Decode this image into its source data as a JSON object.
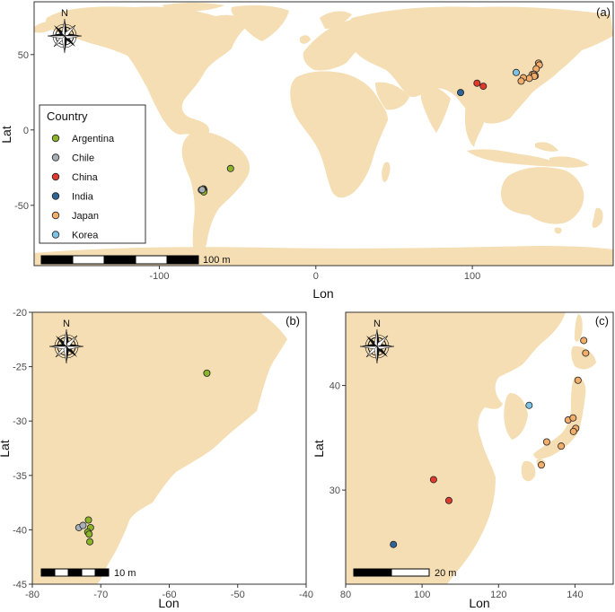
{
  "panels": [
    {
      "id": "a",
      "label": "(a)",
      "xlabel": "Lon",
      "ylabel": "Lat",
      "xlim": [
        -180,
        190
      ],
      "ylim": [
        -90,
        85
      ],
      "xticks": [
        -100,
        0,
        100
      ],
      "yticks": [
        50,
        0,
        -50
      ],
      "north_label": "N",
      "scalebar_label": "100 m"
    },
    {
      "id": "b",
      "label": "(b)",
      "xlabel": "Lon",
      "ylabel": "Lat",
      "xlim": [
        -80,
        -40
      ],
      "ylim": [
        -45,
        -20
      ],
      "xticks": [
        -80,
        -70,
        -60,
        -50,
        -40
      ],
      "yticks": [
        -20,
        -25,
        -30,
        -35,
        -40,
        -45
      ],
      "north_label": "N",
      "scalebar_label": "10 m"
    },
    {
      "id": "c",
      "label": "(c)",
      "xlabel": "Lon",
      "ylabel": "Lat",
      "xlim": [
        80,
        150
      ],
      "ylim": [
        21,
        47
      ],
      "xticks": [
        80,
        100,
        120,
        140
      ],
      "yticks": [
        40,
        30
      ],
      "north_label": "N",
      "scalebar_label": "20 m"
    }
  ],
  "legend": {
    "title": "Country",
    "entries": [
      {
        "label": "Argentina",
        "color": "#8db32b"
      },
      {
        "label": "Chile",
        "color": "#a6b0b6"
      },
      {
        "label": "China",
        "color": "#e03a2f"
      },
      {
        "label": "India",
        "color": "#2f6496"
      },
      {
        "label": "Japan",
        "color": "#f2ad6b"
      },
      {
        "label": "Korea",
        "color": "#7ec3e6"
      }
    ]
  },
  "colors": {
    "land": "#f5deb3",
    "panel_border": "#333333"
  },
  "sites": [
    {
      "country": "Argentina",
      "lon": -54.5,
      "lat": -25.6
    },
    {
      "country": "Argentina",
      "lon": -71.8,
      "lat": -39.1
    },
    {
      "country": "Argentina",
      "lon": -71.5,
      "lat": -39.8
    },
    {
      "country": "Argentina",
      "lon": -71.9,
      "lat": -40.2
    },
    {
      "country": "Argentina",
      "lon": -71.7,
      "lat": -40.4
    },
    {
      "country": "Argentina",
      "lon": -71.6,
      "lat": -41.1
    },
    {
      "country": "Chile",
      "lon": -73.2,
      "lat": -39.8
    },
    {
      "country": "Chile",
      "lon": -72.6,
      "lat": -39.6
    },
    {
      "country": "China",
      "lon": 103.0,
      "lat": 31.0
    },
    {
      "country": "China",
      "lon": 107.0,
      "lat": 29.0
    },
    {
      "country": "India",
      "lon": 92.5,
      "lat": 24.8
    },
    {
      "country": "Japan",
      "lon": 142.3,
      "lat": 44.3
    },
    {
      "country": "Japan",
      "lon": 142.8,
      "lat": 43.1
    },
    {
      "country": "Japan",
      "lon": 140.8,
      "lat": 40.5
    },
    {
      "country": "Japan",
      "lon": 138.2,
      "lat": 36.7
    },
    {
      "country": "Japan",
      "lon": 139.5,
      "lat": 36.9
    },
    {
      "country": "Japan",
      "lon": 140.2,
      "lat": 35.9
    },
    {
      "country": "Japan",
      "lon": 139.6,
      "lat": 35.6
    },
    {
      "country": "Japan",
      "lon": 136.4,
      "lat": 34.2
    },
    {
      "country": "Japan",
      "lon": 132.6,
      "lat": 34.6
    },
    {
      "country": "Japan",
      "lon": 131.2,
      "lat": 32.4
    },
    {
      "country": "Korea",
      "lon": 128.0,
      "lat": 38.1
    }
  ]
}
